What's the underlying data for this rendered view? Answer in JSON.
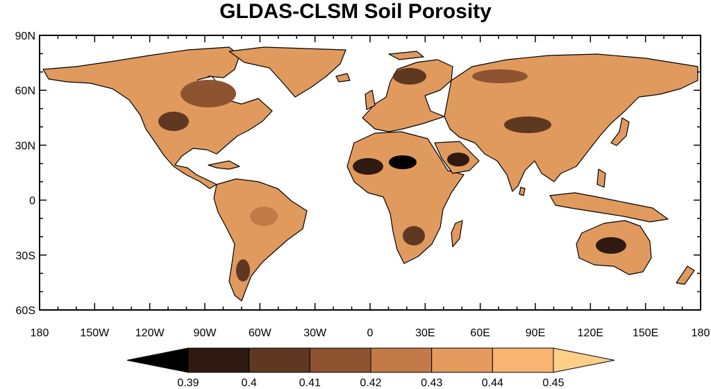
{
  "title": "GLDAS-CLSM Soil Porosity",
  "map": {
    "lat_labels": [
      "90N",
      "60N",
      "30N",
      "0",
      "30S",
      "60S"
    ],
    "lon_labels": [
      "180",
      "150W",
      "120W",
      "90W",
      "60W",
      "30W",
      "0",
      "30E",
      "60E",
      "90E",
      "120E",
      "150E",
      "180"
    ],
    "lon_range": [
      -180,
      180
    ],
    "lat_range": [
      -60,
      90
    ],
    "land_color": "#e09a5e",
    "ocean_color": "#ffffff"
  },
  "colorbar": {
    "levels": [
      "0.39",
      "0.4",
      "0.41",
      "0.42",
      "0.43",
      "0.44",
      "0.45"
    ],
    "colors": [
      "#000000",
      "#2e1a10",
      "#5e3820",
      "#8e5432",
      "#c27a48",
      "#e59a5e",
      "#f8b470",
      "#ffcf8a"
    ]
  }
}
